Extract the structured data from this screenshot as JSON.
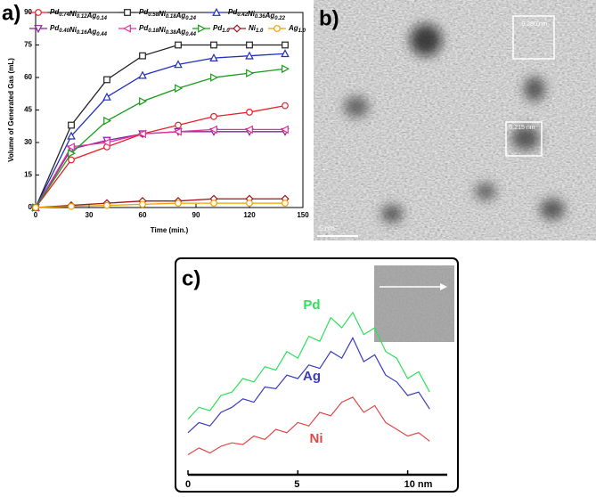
{
  "chart_data": [
    {
      "type": "line",
      "label": "a)",
      "x_label": "Time (min.)",
      "y_label": "Volume of Generated Gas (mL)",
      "x": [
        0,
        20,
        40,
        60,
        80,
        100,
        120,
        140
      ],
      "xlim": [
        0,
        150
      ],
      "xticks": [
        0,
        30,
        60,
        90,
        120,
        150
      ],
      "ylim": [
        0,
        90
      ],
      "yticks": [
        0,
        15,
        30,
        45,
        60,
        75,
        90
      ],
      "series": [
        {
          "name": "Pd0.74Ni0.12Ag0.14",
          "color": "#e8202a",
          "marker": "circle",
          "values": [
            0,
            22,
            28,
            34,
            38,
            42,
            44,
            47
          ]
        },
        {
          "name": "Pd0.58Ni0.18Ag0.24",
          "color": "#222222",
          "marker": "square",
          "values": [
            0,
            38,
            59,
            70,
            75,
            75,
            75,
            75
          ]
        },
        {
          "name": "Pd0.42Ni0.36Ag0.22",
          "color": "#1f2fbf",
          "marker": "triangle-up",
          "values": [
            0,
            33,
            51,
            61,
            66,
            69,
            70,
            71
          ]
        },
        {
          "name": "Pd0.40Ni0.16Ag0.44",
          "color": "#8b1f9e",
          "marker": "triangle-down",
          "values": [
            0,
            27,
            31,
            34,
            35,
            35,
            35,
            35
          ]
        },
        {
          "name": "Pd0.18Ni0.38Ag0.44",
          "color": "#e0339a",
          "marker": "triangle-left",
          "values": [
            0,
            28,
            30,
            34,
            35,
            36,
            36,
            36
          ]
        },
        {
          "name": "Pd1.0",
          "color": "#1a9a1a",
          "marker": "triangle-right",
          "values": [
            0,
            25,
            40,
            49,
            55,
            60,
            62,
            64
          ]
        },
        {
          "name": "Ni1.0",
          "color": "#a0141a",
          "marker": "diamond",
          "values": [
            0,
            1,
            2,
            3,
            3,
            4,
            4,
            4
          ]
        },
        {
          "name": "Ag1.0",
          "color": "#f0a000",
          "marker": "circle",
          "values": [
            0,
            0.5,
            1,
            1.5,
            2,
            2,
            2,
            2
          ]
        }
      ]
    },
    {
      "type": "line",
      "label": "c)",
      "x": [
        0,
        0.5,
        1,
        1.5,
        2,
        2.5,
        3,
        3.5,
        4,
        4.5,
        5,
        5.5,
        6,
        6.5,
        7,
        7.5,
        8,
        8.5,
        9,
        9.5,
        10,
        10.5,
        11
      ],
      "xlim": [
        0,
        11.8
      ],
      "xticks": [
        0,
        5,
        {
          "value": 10,
          "label": "10 nm"
        }
      ],
      "ylim": [
        0,
        100
      ],
      "series": [
        {
          "name": "Pd",
          "color": "#2ee05a",
          "values": [
            26,
            33,
            31,
            40,
            42,
            50,
            48,
            57,
            55,
            66,
            62,
            75,
            72,
            86,
            80,
            89,
            76,
            80,
            66,
            62,
            50,
            54,
            42
          ]
        },
        {
          "name": "Ag",
          "color": "#3a3ac0",
          "values": [
            18,
            24,
            22,
            30,
            33,
            38,
            36,
            45,
            44,
            52,
            50,
            58,
            56,
            66,
            62,
            74,
            60,
            64,
            52,
            48,
            40,
            42,
            32
          ]
        },
        {
          "name": "Ni",
          "color": "#e04848",
          "values": [
            5,
            9,
            6,
            10,
            12,
            11,
            16,
            14,
            20,
            18,
            24,
            22,
            30,
            28,
            36,
            39,
            30,
            34,
            24,
            20,
            16,
            18,
            13
          ]
        }
      ]
    }
  ],
  "image": {
    "label": "b)",
    "spacings": [
      "0.280 nm",
      "0.215 nm"
    ],
    "scale_bar": "5 nm"
  }
}
